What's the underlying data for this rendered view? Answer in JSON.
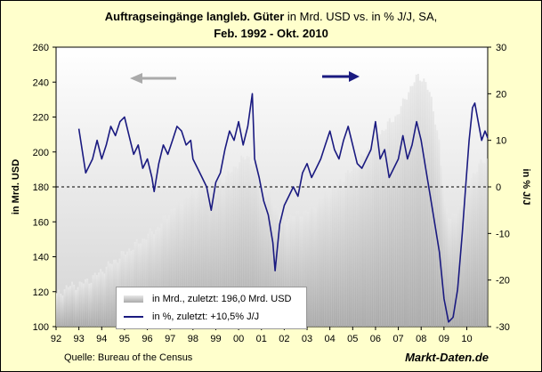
{
  "title": {
    "bold": "Auftragseingänge langleb. Güter",
    "rest": " in Mrd. USD vs. in % J/J, SA,",
    "line2": "Feb. 1992 - Okt. 2010"
  },
  "source": "Quelle: Bureau of the Census",
  "brand": "Markt-Daten.de",
  "colors": {
    "background": "#ffffcc",
    "bars": "#c8c8c8",
    "line": "#1a1a80",
    "arrow_left": "#aaaaaa",
    "arrow_right": "#1a1a80",
    "dashed": "#000000"
  },
  "legend": {
    "bars_label": "in Mrd., zuletzt: 196,0  Mrd. USD",
    "line_label": "in %, zuletzt: +10,5% J/J"
  },
  "chart_data": {
    "type": "bar+line",
    "title": "Auftragseingänge langleb. Güter in Mrd. USD vs. in % J/J, SA, Feb. 1992 - Okt. 2010",
    "x_range": [
      1992.0,
      2010.917
    ],
    "x_ticks": [
      "92",
      "93",
      "94",
      "95",
      "96",
      "97",
      "98",
      "99",
      "00",
      "01",
      "02",
      "03",
      "04",
      "05",
      "06",
      "07",
      "08",
      "09",
      "10"
    ],
    "left_axis": {
      "label": "in Mrd. USD",
      "min": 100,
      "max": 260,
      "ticks": [
        100,
        120,
        140,
        160,
        180,
        200,
        220,
        240,
        260
      ]
    },
    "right_axis": {
      "label": "in % J/J",
      "min": -30,
      "max": 30,
      "ticks": [
        -30,
        -20,
        -10,
        0,
        10,
        20,
        30
      ]
    },
    "reference_line": {
      "axis": "right",
      "value": 0,
      "style": "dashed"
    },
    "series": [
      {
        "name": "in Mrd., zuletzt: 196,0  Mrd. USD",
        "kind": "bar",
        "axis": "left",
        "points": [
          [
            1992.08,
            118
          ],
          [
            1992.5,
            123
          ],
          [
            1993.0,
            124
          ],
          [
            1993.5,
            127
          ],
          [
            1994.0,
            132
          ],
          [
            1994.5,
            137
          ],
          [
            1995.0,
            142
          ],
          [
            1995.5,
            147
          ],
          [
            1996.0,
            152
          ],
          [
            1996.5,
            157
          ],
          [
            1997.0,
            166
          ],
          [
            1997.5,
            172
          ],
          [
            1998.0,
            177
          ],
          [
            1998.5,
            180
          ],
          [
            1999.0,
            182
          ],
          [
            1999.5,
            186
          ],
          [
            2000.0,
            194
          ],
          [
            2000.4,
            198
          ],
          [
            2000.8,
            190
          ],
          [
            2001.0,
            183
          ],
          [
            2001.5,
            172
          ],
          [
            2002.0,
            162
          ],
          [
            2002.5,
            164
          ],
          [
            2003.0,
            166
          ],
          [
            2003.5,
            172
          ],
          [
            2004.0,
            178
          ],
          [
            2004.5,
            184
          ],
          [
            2005.0,
            190
          ],
          [
            2005.5,
            198
          ],
          [
            2006.0,
            208
          ],
          [
            2006.5,
            215
          ],
          [
            2007.0,
            222
          ],
          [
            2007.5,
            236
          ],
          [
            2007.9,
            244
          ],
          [
            2008.2,
            240
          ],
          [
            2008.5,
            228
          ],
          [
            2008.8,
            205
          ],
          [
            2009.0,
            172
          ],
          [
            2009.3,
            162
          ],
          [
            2009.6,
            166
          ],
          [
            2010.0,
            180
          ],
          [
            2010.5,
            192
          ],
          [
            2010.917,
            196
          ]
        ]
      },
      {
        "name": "in %, zuletzt: +10,5% J/J",
        "kind": "line",
        "axis": "right",
        "points": [
          [
            1993.0,
            12.5
          ],
          [
            1993.3,
            3
          ],
          [
            1993.6,
            6
          ],
          [
            1993.8,
            10
          ],
          [
            1994.0,
            6
          ],
          [
            1994.2,
            9
          ],
          [
            1994.4,
            13
          ],
          [
            1994.6,
            11
          ],
          [
            1994.8,
            14
          ],
          [
            1995.0,
            15
          ],
          [
            1995.2,
            11
          ],
          [
            1995.4,
            7
          ],
          [
            1995.6,
            9
          ],
          [
            1995.8,
            4
          ],
          [
            1996.0,
            6
          ],
          [
            1996.2,
            2
          ],
          [
            1996.3,
            -1
          ],
          [
            1996.5,
            5
          ],
          [
            1996.7,
            9
          ],
          [
            1996.9,
            7
          ],
          [
            1997.1,
            10
          ],
          [
            1997.3,
            13
          ],
          [
            1997.5,
            12
          ],
          [
            1997.7,
            9
          ],
          [
            1997.9,
            10
          ],
          [
            1998.0,
            6
          ],
          [
            1998.2,
            4
          ],
          [
            1998.4,
            2
          ],
          [
            1998.6,
            0
          ],
          [
            1998.8,
            -5
          ],
          [
            1999.0,
            1
          ],
          [
            1999.2,
            3
          ],
          [
            1999.4,
            8
          ],
          [
            1999.6,
            12
          ],
          [
            1999.8,
            10
          ],
          [
            2000.0,
            14
          ],
          [
            2000.2,
            9
          ],
          [
            2000.4,
            13
          ],
          [
            2000.6,
            20
          ],
          [
            2000.7,
            6
          ],
          [
            2000.9,
            2
          ],
          [
            2001.1,
            -3
          ],
          [
            2001.3,
            -6
          ],
          [
            2001.5,
            -12
          ],
          [
            2001.6,
            -18
          ],
          [
            2001.8,
            -8
          ],
          [
            2002.0,
            -4
          ],
          [
            2002.2,
            -2
          ],
          [
            2002.4,
            0
          ],
          [
            2002.6,
            -2
          ],
          [
            2002.8,
            3
          ],
          [
            2003.0,
            5
          ],
          [
            2003.2,
            2
          ],
          [
            2003.4,
            4
          ],
          [
            2003.6,
            6
          ],
          [
            2003.8,
            9
          ],
          [
            2004.0,
            12
          ],
          [
            2004.2,
            8
          ],
          [
            2004.4,
            6
          ],
          [
            2004.6,
            10
          ],
          [
            2004.8,
            13
          ],
          [
            2005.0,
            9
          ],
          [
            2005.2,
            5
          ],
          [
            2005.4,
            4
          ],
          [
            2005.6,
            6
          ],
          [
            2005.8,
            8
          ],
          [
            2006.0,
            14
          ],
          [
            2006.2,
            6
          ],
          [
            2006.4,
            8
          ],
          [
            2006.6,
            2
          ],
          [
            2006.8,
            4
          ],
          [
            2007.0,
            6
          ],
          [
            2007.2,
            11
          ],
          [
            2007.4,
            6
          ],
          [
            2007.6,
            9
          ],
          [
            2007.8,
            14
          ],
          [
            2008.0,
            10
          ],
          [
            2008.2,
            4
          ],
          [
            2008.4,
            -2
          ],
          [
            2008.6,
            -8
          ],
          [
            2008.8,
            -14
          ],
          [
            2009.0,
            -24
          ],
          [
            2009.2,
            -29
          ],
          [
            2009.4,
            -28
          ],
          [
            2009.6,
            -22
          ],
          [
            2009.8,
            -10
          ],
          [
            2009.95,
            0
          ],
          [
            2010.1,
            10
          ],
          [
            2010.25,
            17
          ],
          [
            2010.35,
            18
          ],
          [
            2010.5,
            14
          ],
          [
            2010.65,
            10
          ],
          [
            2010.8,
            12
          ],
          [
            2010.917,
            10.5
          ]
        ]
      }
    ]
  }
}
